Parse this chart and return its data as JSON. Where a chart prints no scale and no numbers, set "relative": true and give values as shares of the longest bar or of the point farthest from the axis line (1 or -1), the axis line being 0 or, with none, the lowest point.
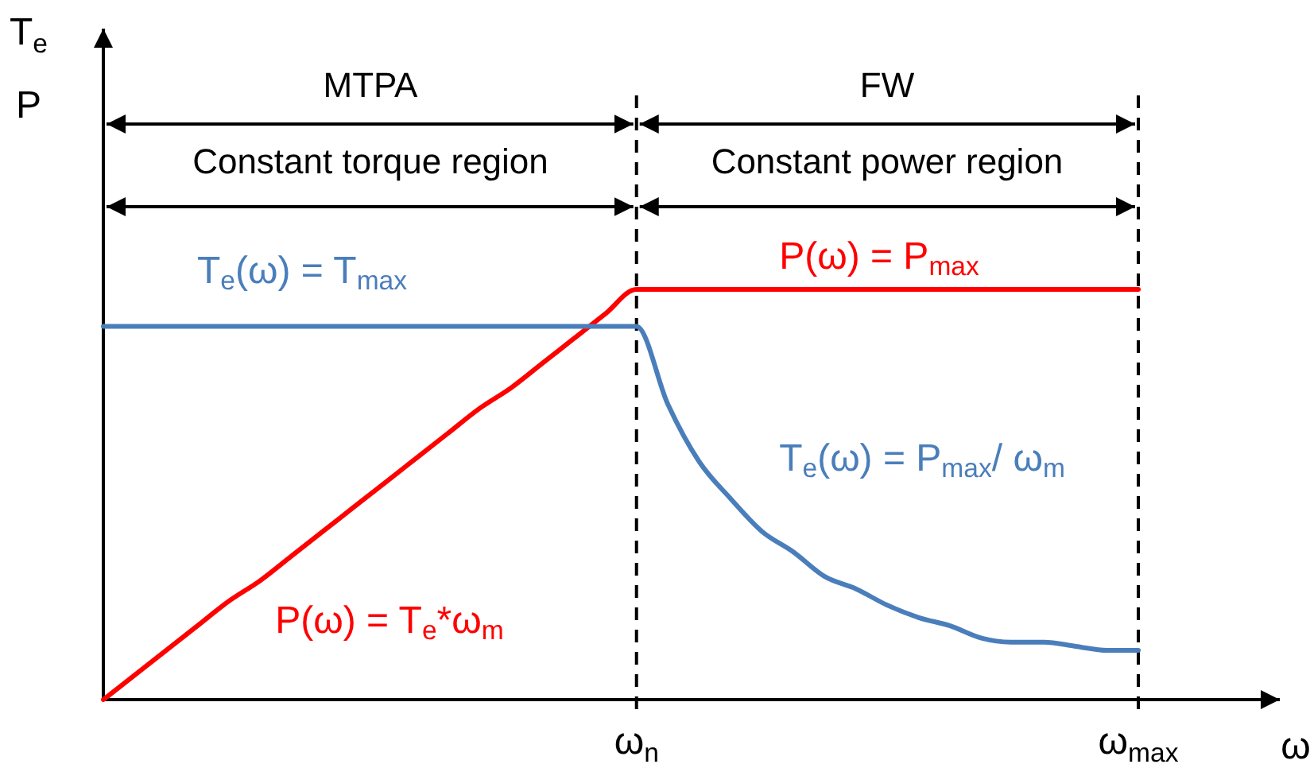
{
  "chart_data": {
    "type": "line",
    "relative": true,
    "xlabel": "ω",
    "ylabel": "T$_{e}$\nP",
    "categories": [
      null,
      null,
      null,
      null,
      null,
      null,
      null,
      null,
      null,
      null,
      null,
      null,
      null,
      null,
      null,
      null,
      null,
      "ω$_{n}$",
      null,
      null,
      null,
      null,
      null,
      null,
      null,
      null,
      null,
      null,
      null,
      null,
      null,
      null,
      null,
      "ω$_{max}$"
    ],
    "series": [
      {
        "color": "#ff0000",
        "values": [
          0,
          0.06,
          0.12,
          0.18,
          0.24,
          0.29,
          0.35,
          0.41,
          0.47,
          0.53,
          0.59,
          0.65,
          0.71,
          0.76,
          0.82,
          0.88,
          0.94,
          1,
          1,
          1,
          1,
          1,
          1,
          1,
          1,
          1,
          1,
          1,
          1,
          1,
          1,
          1,
          1,
          1
        ]
      },
      {
        "color": "#4a7ebb",
        "values": [
          0.91,
          0.91,
          0.91,
          0.91,
          0.91,
          0.91,
          0.91,
          0.91,
          0.91,
          0.91,
          0.91,
          0.91,
          0.91,
          0.91,
          0.91,
          0.91,
          0.91,
          0.91,
          0.72,
          0.58,
          0.49,
          0.41,
          0.36,
          0.3,
          0.27,
          0.23,
          0.2,
          0.18,
          0.15,
          0.14,
          0.14,
          0.13,
          0.12,
          0.12
        ]
      }
    ],
    "ref_lines": [
      {
        "axis": "x",
        "value": "ω$_{n}$",
        "color": "#000000",
        "line_style": "dashed"
      },
      {
        "axis": "x",
        "value": "ω$_{max}$",
        "color": "#000000",
        "line_style": "dashed"
      }
    ],
    "annotations": [
      "MTPA",
      "FW",
      "Constant torque region",
      "Constant power region",
      "T$_{e}$(ω) = T$_{max}$",
      "P(ω) = P$_{max}$",
      "T$_{e}$(ω) = P$_{max}$/ ω$_{m}$",
      "P(ω) = T$_{e}$*ω$_{m}$"
    ]
  }
}
